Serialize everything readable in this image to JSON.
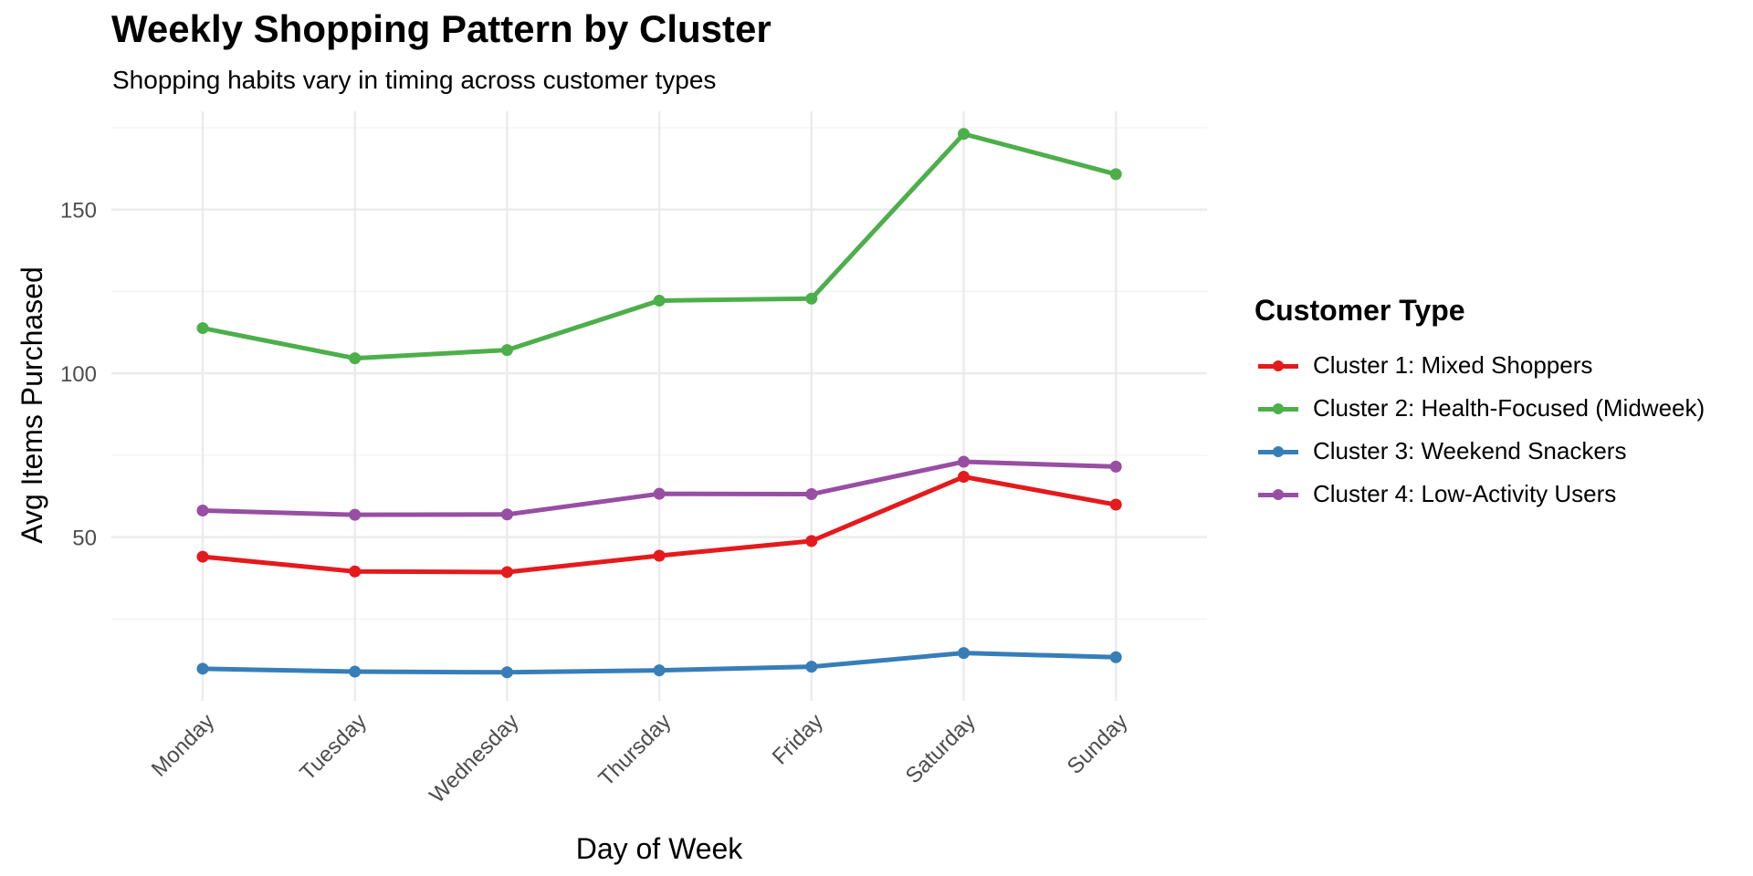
{
  "chart_data": {
    "type": "line",
    "title": "Weekly Shopping Pattern by Cluster",
    "subtitle": "Shopping habits vary in timing across customer types",
    "xlabel": "Day of Week",
    "ylabel": "Avg Items Purchased",
    "categories": [
      "Monday",
      "Tuesday",
      "Wednesday",
      "Thursday",
      "Friday",
      "Saturday",
      "Sunday"
    ],
    "ylim": [
      0,
      180
    ],
    "yticks": [
      50,
      100,
      150
    ],
    "grid": true,
    "legend_title": "Customer Type",
    "legend_position": "right",
    "series": [
      {
        "name": "Cluster 1: Mixed Shoppers",
        "color": "#e41a1c",
        "values": [
          44,
          39.5,
          39.3,
          44.3,
          48.8,
          68.4,
          59.9
        ]
      },
      {
        "name": "Cluster 2: Health-Focused (Midweek)",
        "color": "#4daf4a",
        "values": [
          113.8,
          104.6,
          107.1,
          122.2,
          122.8,
          173.1,
          160.8
        ]
      },
      {
        "name": "Cluster 3: Weekend Snackers",
        "color": "#377eb8",
        "values": [
          9.8,
          8.9,
          8.7,
          9.3,
          10.4,
          14.6,
          13.3
        ]
      },
      {
        "name": "Cluster 4: Low-Activity Users",
        "color": "#984ea3",
        "values": [
          58.1,
          56.8,
          56.9,
          63.2,
          63.1,
          73,
          71.5
        ]
      }
    ]
  }
}
